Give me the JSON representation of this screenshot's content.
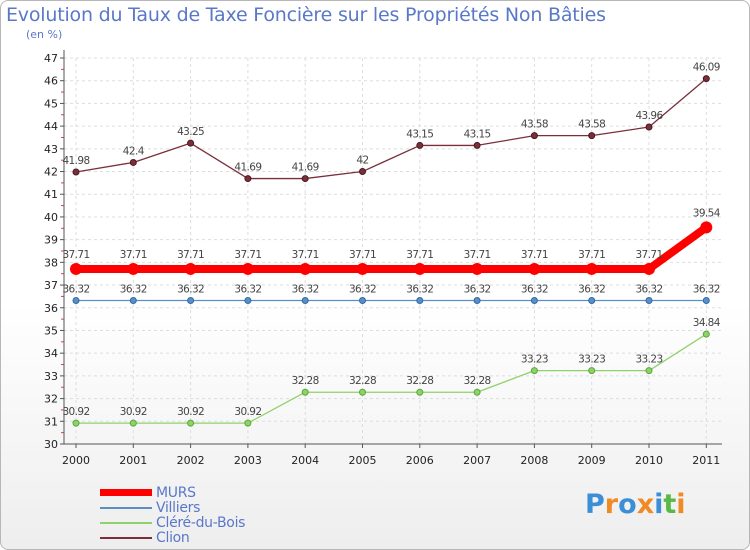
{
  "header": {
    "title": "Evolution du Taux de Taxe Foncière sur les Propriétés Non Bâties",
    "subtitle": "(en %)"
  },
  "brand": {
    "letters": [
      "P",
      "r",
      "o",
      "x",
      "i",
      "t",
      "i"
    ],
    "colors": [
      "#3c8fd6",
      "#f08a24",
      "#3c8fd6",
      "#f08a24",
      "#3c8fd6",
      "#58b947",
      "#f08a24"
    ]
  },
  "chart_data": {
    "type": "line",
    "title": "Evolution du Taux de Taxe Foncière sur les Propriétés Non Bâties",
    "ylabel": "(en %)",
    "xlabel": "",
    "categories": [
      "2000",
      "2001",
      "2002",
      "2003",
      "2004",
      "2005",
      "2006",
      "2007",
      "2008",
      "2009",
      "2010",
      "2011"
    ],
    "yticks": [
      "30",
      "31",
      "32",
      "33",
      "34",
      "35",
      "36",
      "37",
      "38",
      "39",
      "40",
      "41",
      "42",
      "43",
      "44",
      "45",
      "46",
      "47"
    ],
    "ylim": [
      30,
      47
    ],
    "grid": true,
    "series": [
      {
        "name": "MURS",
        "color": "#ff0000",
        "values": [
          37.71,
          37.71,
          37.71,
          37.71,
          37.71,
          37.71,
          37.71,
          37.71,
          37.71,
          37.71,
          37.71,
          39.54
        ],
        "labels": [
          "37.71",
          "37.71",
          "37.71",
          "37.71",
          "37.71",
          "37.71",
          "37.71",
          "37.71",
          "37.71",
          "37.71",
          "37.71",
          "39.54"
        ]
      },
      {
        "name": "Villiers",
        "color": "#5b8fc4",
        "values": [
          36.32,
          36.32,
          36.32,
          36.32,
          36.32,
          36.32,
          36.32,
          36.32,
          36.32,
          36.32,
          36.32,
          36.32
        ],
        "labels": [
          "36.32",
          "36.32",
          "36.32",
          "36.32",
          "36.32",
          "36.32",
          "36.32",
          "36.32",
          "36.32",
          "36.32",
          "36.32",
          "36.32"
        ]
      },
      {
        "name": "Cléré-du-Bois",
        "color": "#8fd16a",
        "values": [
          30.92,
          30.92,
          30.92,
          30.92,
          32.28,
          32.28,
          32.28,
          32.28,
          33.23,
          33.23,
          33.23,
          34.84
        ],
        "labels": [
          "30.92",
          "30.92",
          "30.92",
          "30.92",
          "32.28",
          "32.28",
          "32.28",
          "32.28",
          "33.23",
          "33.23",
          "33.23",
          "34.84"
        ]
      },
      {
        "name": "Clion",
        "color": "#7a2f3a",
        "values": [
          41.98,
          42.4,
          43.25,
          41.69,
          41.69,
          42,
          43.15,
          43.15,
          43.58,
          43.58,
          43.96,
          46.09
        ],
        "labels": [
          "41.98",
          "42.4",
          "43.25",
          "41.69",
          "41.69",
          "42",
          "43.15",
          "43.15",
          "43.58",
          "43.58",
          "43.96",
          "46.09"
        ]
      }
    ]
  }
}
